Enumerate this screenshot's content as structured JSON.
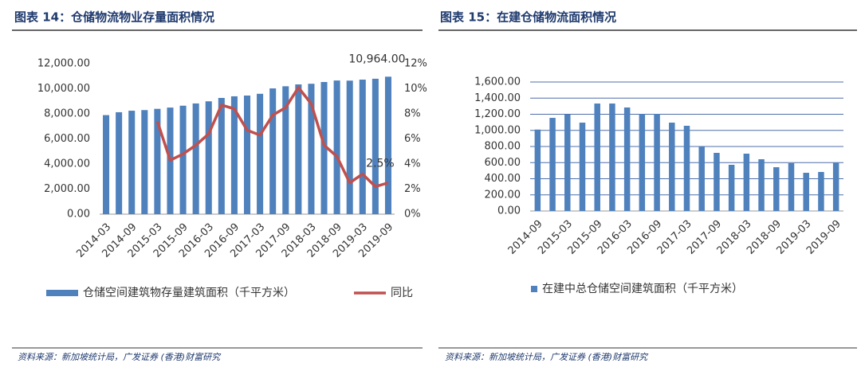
{
  "chart_data": [
    {
      "type": "combo",
      "title": "图表 14：仓储物流物业存量面积情况",
      "source": "资料来源：新加坡统计局，广发证券 (香港)财富研究",
      "categories": [
        "2014-03",
        null,
        "2014-09",
        null,
        "2015-03",
        null,
        "2015-09",
        null,
        "2016-03",
        null,
        "2016-09",
        null,
        "2017-03",
        null,
        "2017-09",
        null,
        "2018-03",
        null,
        "2018-09",
        null,
        "2019-03",
        null,
        "2019-09"
      ],
      "series": [
        {
          "name": "仓储空间建筑物存量建筑面积（千平方米）",
          "type": "bar",
          "color": "#4f81bd",
          "values": [
            7900,
            8130,
            8250,
            8300,
            8400,
            8500,
            8650,
            8830,
            9000,
            9270,
            9400,
            9460,
            9600,
            10030,
            10200,
            10350,
            10400,
            10540,
            10660,
            10650,
            10730,
            10800,
            10964
          ],
          "value_labels": [
            null,
            null,
            null,
            null,
            null,
            null,
            null,
            null,
            null,
            null,
            null,
            null,
            null,
            null,
            null,
            null,
            null,
            null,
            null,
            null,
            null,
            null,
            "10,964.00"
          ]
        },
        {
          "name": "同比",
          "type": "line",
          "axis": "y2",
          "color": "#c0504d",
          "values": [
            null,
            null,
            null,
            null,
            7.4,
            4.3,
            4.8,
            5.5,
            6.4,
            8.7,
            8.4,
            6.7,
            6.3,
            7.9,
            8.5,
            10.1,
            8.8,
            5.5,
            4.6,
            2.5,
            3.2,
            2.2,
            2.5
          ],
          "value_labels": [
            null,
            null,
            null,
            null,
            null,
            null,
            null,
            null,
            null,
            null,
            null,
            null,
            null,
            null,
            null,
            null,
            null,
            null,
            null,
            null,
            null,
            null,
            "2.5%"
          ]
        }
      ],
      "ylim": [
        0,
        12000
      ],
      "yticks": [
        {
          "value": 0,
          "label": "0.00"
        },
        {
          "value": 2000,
          "label": "2,000.00"
        },
        {
          "value": 4000,
          "label": "4,000.00"
        },
        {
          "value": 6000,
          "label": "6,000.00"
        },
        {
          "value": 8000,
          "label": "8,000.00"
        },
        {
          "value": 10000,
          "label": "10,000.00"
        },
        {
          "value": 12000,
          "label": "12,000.00"
        }
      ],
      "y2lim": [
        0,
        12
      ],
      "y2ticks": [
        {
          "value": 0,
          "label": "0%"
        },
        {
          "value": 2,
          "label": "2%"
        },
        {
          "value": 4,
          "label": "4%"
        },
        {
          "value": 6,
          "label": "6%"
        },
        {
          "value": 8,
          "label": "8%"
        },
        {
          "value": 10,
          "label": "10%"
        },
        {
          "value": 12,
          "label": "12%"
        }
      ],
      "grid": false,
      "legend": "bottom"
    },
    {
      "type": "bar",
      "title": "图表 15：在建仓储物流面积情况",
      "source": "资料来源：新加坡统计局，广发证券 (香港)财富研究",
      "categories": [
        "2014-09",
        null,
        "2015-03",
        null,
        "2015-09",
        null,
        "2016-03",
        null,
        "2016-09",
        null,
        "2017-03",
        null,
        "2017-09",
        null,
        "2018-03",
        null,
        "2018-09",
        null,
        "2019-03",
        null,
        "2019-09"
      ],
      "series": [
        {
          "name": "在建中总仓储空间建筑面积（千平方米）",
          "type": "bar",
          "color": "#4f81bd",
          "values": [
            1010,
            1155,
            1195,
            1096,
            1333,
            1333,
            1284,
            1205,
            1205,
            1096,
            1057,
            800,
            721,
            573,
            711,
            642,
            543,
            593,
            474,
            484,
            602
          ]
        }
      ],
      "ylim": [
        0,
        1600
      ],
      "yticks": [
        {
          "value": 0,
          "label": "0.00"
        },
        {
          "value": 200,
          "label": "200.00"
        },
        {
          "value": 400,
          "label": "400.00"
        },
        {
          "value": 600,
          "label": "600.00"
        },
        {
          "value": 800,
          "label": "800.00"
        },
        {
          "value": 1000,
          "label": "1,000.00"
        },
        {
          "value": 1200,
          "label": "1,200.00"
        },
        {
          "value": 1400,
          "label": "1,400.00"
        },
        {
          "value": 1600,
          "label": "1,600.00"
        }
      ],
      "grid": true,
      "legend": "bottom"
    }
  ]
}
